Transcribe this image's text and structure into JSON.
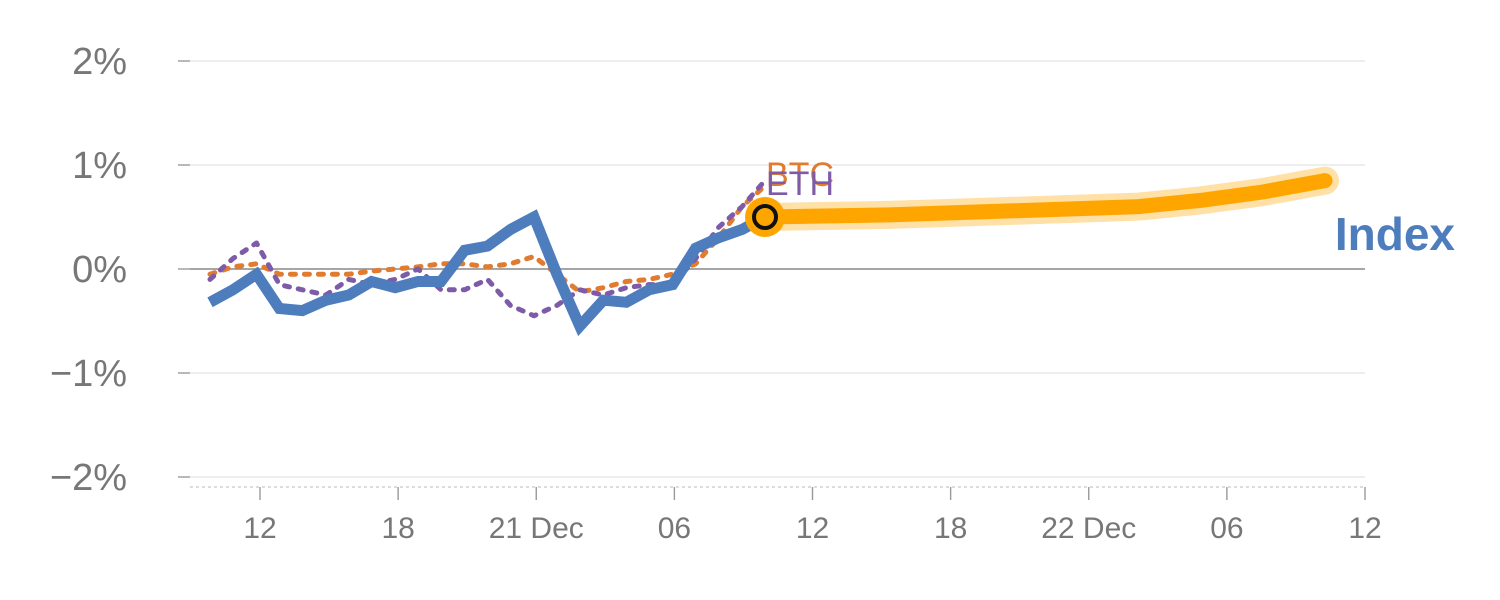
{
  "chart_data": {
    "type": "line",
    "y_axis": {
      "min": -2,
      "max": 2,
      "ticks": [
        2,
        1,
        0,
        -1,
        -2
      ],
      "tick_labels": [
        "2%",
        "1%",
        "0%",
        "−1%",
        "−2%"
      ],
      "unit": "%"
    },
    "x_axis": {
      "min": 0,
      "max": 17,
      "tick_positions": [
        1,
        3,
        5,
        7,
        9,
        11,
        13,
        15,
        17
      ],
      "tick_labels": [
        "12",
        "18",
        "21 Dec",
        "06",
        "12",
        "18",
        "22 Dec",
        "06",
        "12"
      ]
    },
    "series": [
      {
        "name": "BTC",
        "style": "dotted",
        "color": "#e07b30",
        "x": [
          0,
          0.33,
          0.67,
          1,
          1.33,
          1.67,
          2,
          2.33,
          2.67,
          3,
          3.33,
          3.67,
          4,
          4.33,
          4.67,
          5,
          5.33,
          5.67,
          6,
          6.33,
          6.67,
          7,
          7.33,
          7.67,
          8
        ],
        "values": [
          -0.05,
          0.02,
          0.05,
          -0.05,
          -0.05,
          -0.05,
          -0.05,
          -0.02,
          0,
          0.02,
          0.05,
          0.05,
          0.02,
          0.05,
          0.12,
          -0.05,
          -0.22,
          -0.18,
          -0.12,
          -0.1,
          -0.05,
          0.05,
          0.3,
          0.6,
          0.8
        ]
      },
      {
        "name": "ETH",
        "style": "dotted",
        "color": "#7e5ba8",
        "x": [
          0,
          0.33,
          0.67,
          1,
          1.33,
          1.67,
          2,
          2.33,
          2.67,
          3,
          3.33,
          3.67,
          4,
          4.33,
          4.67,
          5,
          5.33,
          5.67,
          6,
          6.33,
          6.67,
          7,
          7.33,
          7.67,
          8
        ],
        "values": [
          -0.1,
          0.1,
          0.25,
          -0.15,
          -0.2,
          -0.25,
          -0.1,
          -0.15,
          -0.1,
          0,
          -0.2,
          -0.2,
          -0.1,
          -0.35,
          -0.45,
          -0.35,
          -0.2,
          -0.25,
          -0.18,
          -0.15,
          -0.15,
          0.1,
          0.4,
          0.6,
          0.85
        ]
      },
      {
        "name": "Index",
        "style": "solid",
        "color": "#4e7dbd",
        "x": [
          0,
          0.33,
          0.67,
          1,
          1.33,
          1.67,
          2,
          2.33,
          2.67,
          3,
          3.33,
          3.67,
          4,
          4.33,
          4.67,
          5,
          5.33,
          5.67,
          6,
          6.33,
          6.67,
          7,
          7.33,
          7.67,
          8
        ],
        "values": [
          -0.32,
          -0.2,
          -0.05,
          -0.38,
          -0.4,
          -0.3,
          -0.25,
          -0.12,
          -0.18,
          -0.12,
          -0.12,
          0.18,
          0.22,
          0.38,
          0.5,
          -0.05,
          -0.55,
          -0.3,
          -0.32,
          -0.2,
          -0.15,
          0.2,
          0.3,
          0.38,
          0.5
        ]
      },
      {
        "name": "Index projection",
        "style": "highlight",
        "color": "#ffa500",
        "x": [
          8,
          10,
          12,
          13,
          14,
          15,
          16,
          17
        ],
        "values": [
          0.5,
          0.52,
          0.56,
          0.58,
          0.6,
          0.66,
          0.74,
          0.85
        ]
      }
    ],
    "marker": {
      "x": 8,
      "value": 0.5
    },
    "labels": {
      "btc": "BTC",
      "eth": "ETH",
      "index": "Index"
    },
    "grid": true,
    "zero_line": true
  }
}
